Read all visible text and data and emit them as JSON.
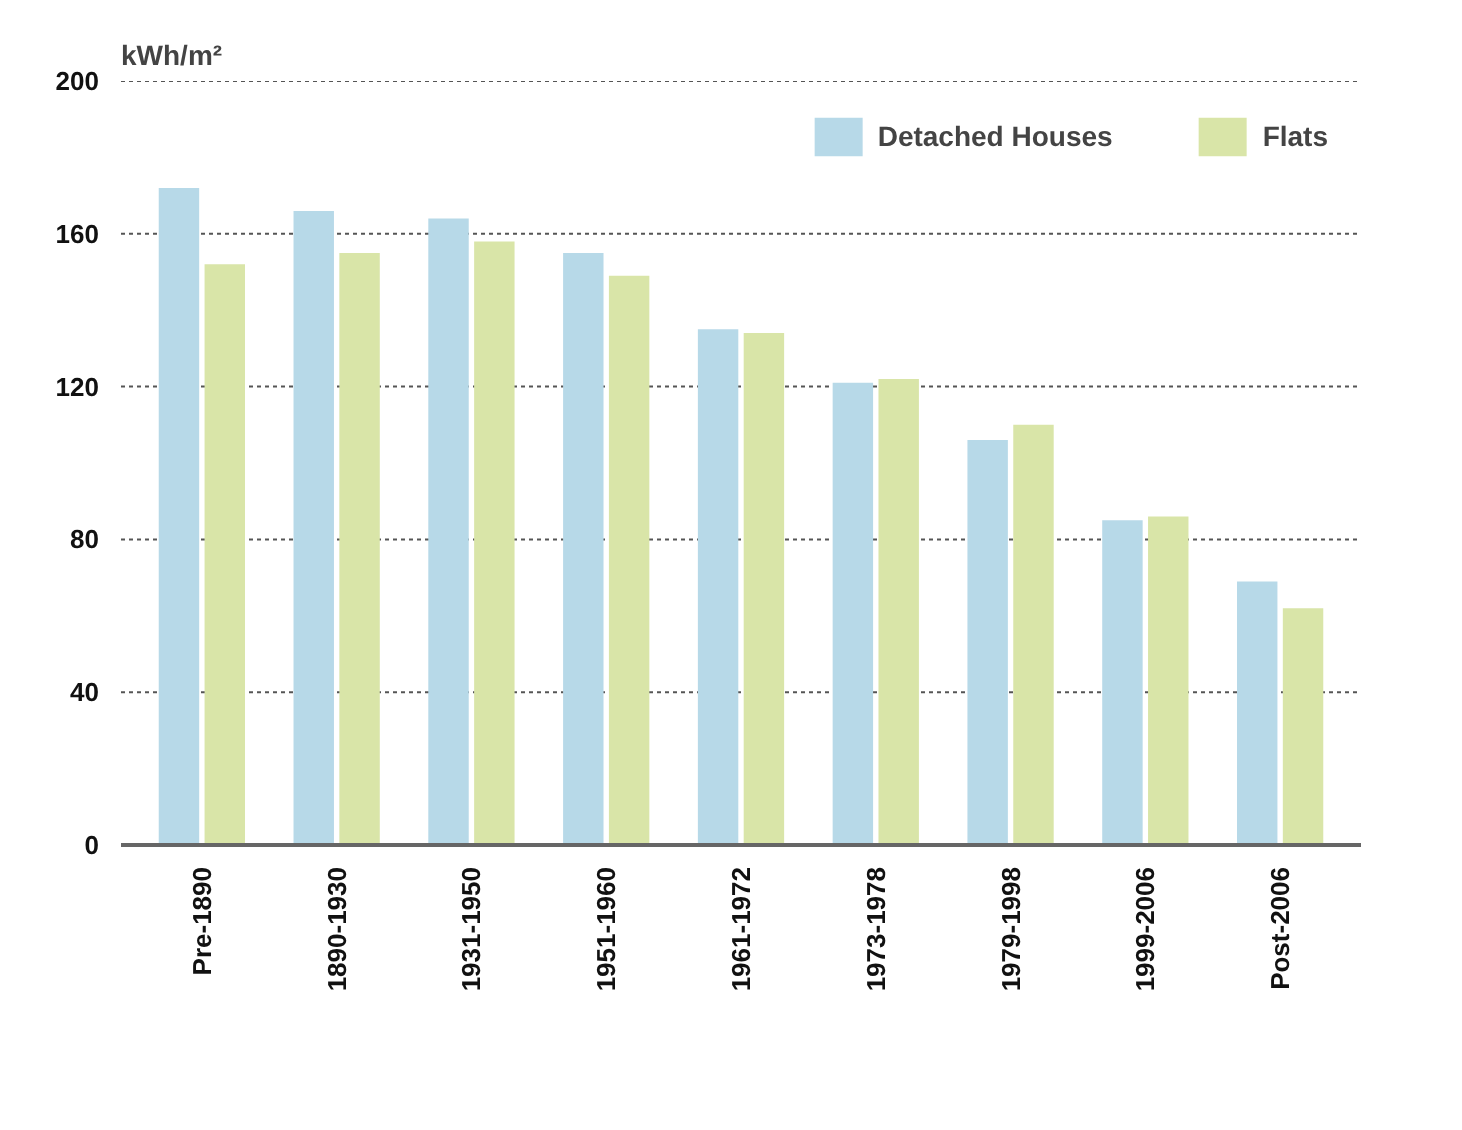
{
  "chart_data": {
    "type": "bar",
    "ylabel": "kWh/m²",
    "categories": [
      "Pre-1890",
      "1890-1930",
      "1931-1950",
      "1951-1960",
      "1961-1972",
      "1973-1978",
      "1979-1998",
      "1999-2006",
      "Post-2006"
    ],
    "series": [
      {
        "name": "Detached Houses",
        "color": "#b7d9e8",
        "values": [
          172,
          166,
          164,
          155,
          135,
          121,
          106,
          85,
          69
        ]
      },
      {
        "name": "Flats",
        "color": "#d9e5a8",
        "values": [
          152,
          155,
          158,
          149,
          134,
          122,
          110,
          86,
          62
        ]
      }
    ],
    "ylim": [
      0,
      200
    ],
    "yticks": [
      0,
      40,
      80,
      120,
      160,
      200
    ],
    "grid": "y",
    "legend": "top right"
  }
}
